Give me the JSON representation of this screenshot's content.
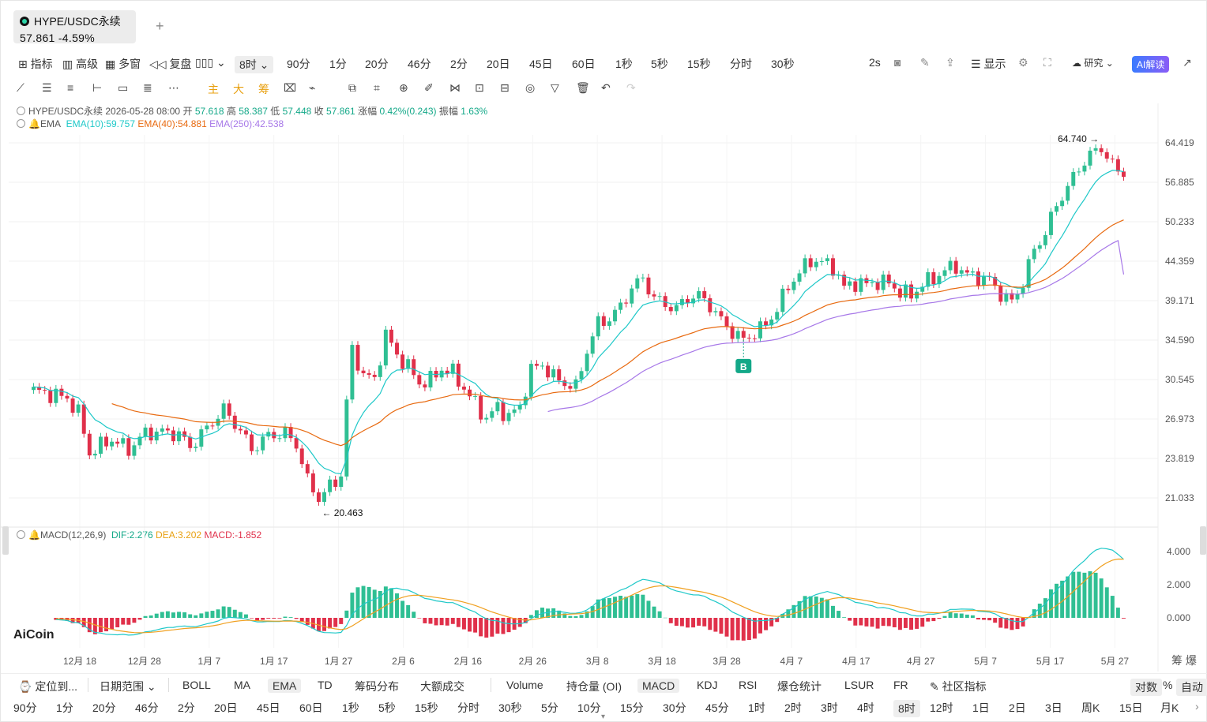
{
  "tab": {
    "symbol": "HYPE/USDC永续",
    "price": "57.861",
    "change": "-4.59%",
    "add": "+"
  },
  "toolbar1": {
    "items": [
      "指标",
      "高级",
      "多窗",
      "复盘"
    ],
    "interval_selected": "8时",
    "intervals": [
      "90分",
      "1分",
      "20分",
      "46分",
      "2分",
      "20日",
      "45日",
      "60日",
      "1秒",
      "5秒",
      "15秒",
      "分时",
      "30秒"
    ],
    "right": [
      "2s",
      "显示",
      "研究",
      "AI解读"
    ]
  },
  "toolbar2": {
    "items": [
      "主",
      "大",
      "筹"
    ]
  },
  "ohlc": {
    "symbol": "HYPE/USDC永续",
    "date": "2026-05-28 08:00",
    "open_label": "开",
    "open": "57.618",
    "high_label": "高",
    "high": "58.387",
    "low_label": "低",
    "low": "57.448",
    "close_label": "收",
    "close": "57.861",
    "chg_label": "涨幅",
    "chg": "0.42%(0.243)",
    "amp_label": "振幅",
    "amp": "1.63%"
  },
  "ema": {
    "label": "EMA",
    "e10": "EMA(10):59.757",
    "e40": "EMA(40):54.881",
    "e250": "EMA(250):42.538"
  },
  "macd": {
    "label": "MACD(12,26,9)",
    "dif": "DIF:2.276",
    "dea": "DEA:3.202",
    "macd": "MACD:-1.852"
  },
  "colors": {
    "up": "#2fbf93",
    "down": "#e0304a",
    "ema10": "#1ec8c8",
    "ema40": "#e86a10",
    "ema250": "#a778e8",
    "dea": "#f0a020"
  },
  "chart_data": {
    "type": "candlestick",
    "scale": "log",
    "price_ticks": [
      "64.419",
      "56.885",
      "50.233",
      "44.359",
      "39.171",
      "34.590",
      "30.545",
      "26.973",
      "23.819",
      "21.033"
    ],
    "macd_ticks": [
      "4.000",
      "2.000",
      "0.000"
    ],
    "x_ticks": [
      "12月 18",
      "12月 28",
      "1月 7",
      "1月 17",
      "1月 27",
      "2月 6",
      "2月 16",
      "2月 26",
      "3月 8",
      "3月 18",
      "3月 28",
      "4月 7",
      "4月 17",
      "4月 27",
      "5月 7",
      "5月 17",
      "5月 27"
    ],
    "high_marker": "64.740 →",
    "low_marker": "← 20.463",
    "signal": "B",
    "price_path": [
      [
        0,
        29.5
      ],
      [
        3,
        29.2
      ],
      [
        6,
        28.8
      ],
      [
        8,
        27.5
      ],
      [
        10,
        24.2
      ],
      [
        12,
        24.8
      ],
      [
        14,
        25.3
      ],
      [
        17,
        24.5
      ],
      [
        20,
        25.8
      ],
      [
        23,
        25.9
      ],
      [
        26,
        25.7
      ],
      [
        28,
        24.7
      ],
      [
        31,
        26.2
      ],
      [
        34,
        27.8
      ],
      [
        37,
        26.0
      ],
      [
        39,
        24.5
      ],
      [
        42,
        25.6
      ],
      [
        45,
        25.8
      ],
      [
        47,
        24.9
      ],
      [
        49,
        22.2
      ],
      [
        51,
        21.0
      ],
      [
        53,
        21.8
      ],
      [
        55,
        22.6
      ],
      [
        56,
        28.5
      ],
      [
        57,
        33.5
      ],
      [
        59,
        31.0
      ],
      [
        61,
        30.5
      ],
      [
        63,
        35.2
      ],
      [
        65,
        33.0
      ],
      [
        67,
        31.8
      ],
      [
        69,
        30.2
      ],
      [
        71,
        30.5
      ],
      [
        73,
        31.6
      ],
      [
        75,
        31.2
      ],
      [
        77,
        29.7
      ],
      [
        79,
        28.3
      ],
      [
        81,
        27.0
      ],
      [
        83,
        28.0
      ],
      [
        85,
        27.2
      ],
      [
        87,
        28.0
      ],
      [
        89,
        31.5
      ],
      [
        91,
        32.0
      ],
      [
        93,
        30.8
      ],
      [
        95,
        30.2
      ],
      [
        97,
        29.8
      ],
      [
        99,
        33.5
      ],
      [
        101,
        36.5
      ],
      [
        103,
        37.0
      ],
      [
        105,
        38.4
      ],
      [
        107,
        40.8
      ],
      [
        109,
        42.0
      ],
      [
        111,
        39.5
      ],
      [
        113,
        38.7
      ],
      [
        115,
        38.2
      ],
      [
        117,
        39.5
      ],
      [
        119,
        39.8
      ],
      [
        121,
        38.6
      ],
      [
        123,
        36.8
      ],
      [
        125,
        35.5
      ],
      [
        127,
        34.6
      ],
      [
        129,
        35.4
      ],
      [
        131,
        36.3
      ],
      [
        133,
        38.2
      ],
      [
        135,
        41.0
      ],
      [
        137,
        42.8
      ],
      [
        139,
        44.5
      ],
      [
        141,
        44.2
      ],
      [
        143,
        43.6
      ],
      [
        145,
        40.8
      ],
      [
        147,
        41.5
      ],
      [
        149,
        41.2
      ],
      [
        151,
        41.6
      ],
      [
        153,
        41.4
      ],
      [
        155,
        40.3
      ],
      [
        157,
        39.8
      ],
      [
        159,
        41.3
      ],
      [
        161,
        42.0
      ],
      [
        163,
        43.1
      ],
      [
        165,
        43.7
      ],
      [
        167,
        42.5
      ],
      [
        169,
        42.2
      ],
      [
        171,
        41.8
      ],
      [
        173,
        40.0
      ],
      [
        175,
        39.0
      ],
      [
        177,
        41.5
      ],
      [
        179,
        46.0
      ],
      [
        181,
        48.5
      ],
      [
        183,
        53.0
      ],
      [
        185,
        56.0
      ],
      [
        187,
        59.5
      ],
      [
        189,
        62.0
      ],
      [
        191,
        63.5
      ],
      [
        193,
        60.0
      ],
      [
        195,
        57.86
      ]
    ],
    "n_bars": 196,
    "ema250_start_bar": 92
  },
  "bottom1": {
    "locate": "定位到...",
    "range": "日期范围",
    "ind_main": [
      "BOLL",
      "MA",
      "EMA",
      "TD",
      "筹码分布",
      "大额成交"
    ],
    "ind_sub": [
      "Volume",
      "持仓量 (OI)",
      "MACD",
      "KDJ",
      "RSI",
      "爆仓统计",
      "LSUR",
      "FR",
      "社区指标"
    ],
    "right": [
      "对数",
      "%",
      "自动"
    ]
  },
  "bottom2": {
    "intervals": [
      "90分",
      "1分",
      "20分",
      "46分",
      "2分",
      "20日",
      "45日",
      "60日",
      "1秒",
      "5秒",
      "15秒",
      "分时",
      "30秒",
      "5分",
      "10分",
      "15分",
      "30分",
      "45分",
      "1时",
      "2时",
      "3时",
      "4时",
      "8时",
      "12时",
      "1日",
      "2日",
      "3日",
      "周K",
      "15日",
      "月K"
    ],
    "selected": "8时"
  },
  "logo": "AiCoin",
  "side_label": "筹  爆"
}
